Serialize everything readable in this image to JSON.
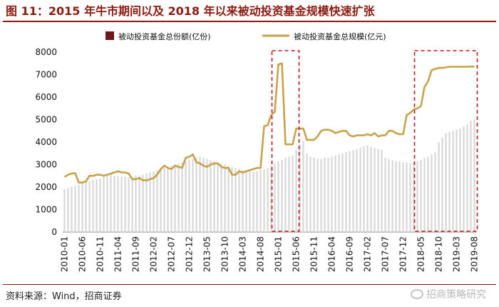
{
  "header": {
    "title": "图 11：2015 年牛市期间以及 2018 年以来被动投资基金规模快速扩张"
  },
  "footer": {
    "source": "资料来源：Wind，招商证券",
    "watermark": "招商策略研究"
  },
  "chart_data": {
    "type": "bar",
    "title": "",
    "ylim": [
      0,
      8000
    ],
    "yticks": [
      0,
      1000,
      2000,
      3000,
      4000,
      5000,
      6000,
      7000,
      8000
    ],
    "xtick_labels": [
      "2010-01",
      "2010-06",
      "2010-11",
      "2011-04",
      "2011-09",
      "2012-02",
      "2012-07",
      "2012-12",
      "2013-05",
      "2013-10",
      "2014-03",
      "2014-08",
      "2015-01",
      "2015-06",
      "2015-11",
      "2016-04",
      "2016-09",
      "2017-02",
      "2017-07",
      "2017-12",
      "2018-05",
      "2018-10",
      "2019-03",
      "2019-08"
    ],
    "legend": [
      "被动投资基金总份额(亿份)",
      "被动投资基金总规模(亿元)"
    ],
    "colors": {
      "bars": "#d8d8d8",
      "legend_bar": "#6b1a1a",
      "line": "#c8a24a",
      "highlight": "#c0141c"
    },
    "x_start": "2010-01",
    "highlight_ranges": [
      [
        "2014-12",
        "2015-06"
      ],
      [
        "2018-04",
        "2019-08"
      ]
    ],
    "series": [
      {
        "name": "被动投资基金总份额(亿份)",
        "kind": "bar",
        "values": [
          1900,
          1950,
          2000,
          2050,
          2100,
          2150,
          2200,
          2250,
          2300,
          2350,
          2400,
          2450,
          2500,
          2550,
          2500,
          2480,
          2450,
          2450,
          2420,
          2450,
          2500,
          2520,
          2550,
          2600,
          2650,
          2700,
          2750,
          2800,
          2850,
          2900,
          2950,
          3000,
          3050,
          3100,
          3150,
          3200,
          3250,
          3300,
          3350,
          3300,
          3250,
          3200,
          3150,
          3100,
          3050,
          3000,
          2950,
          2900,
          2850,
          2800,
          2750,
          2720,
          2700,
          2680,
          2700,
          2750,
          2800,
          2850,
          2950,
          3050,
          3150,
          3200,
          3300,
          3350,
          3400,
          3650,
          3900,
          4050,
          3500,
          3350,
          3300,
          3250,
          3250,
          3300,
          3300,
          3350,
          3400,
          3450,
          3500,
          3550,
          3600,
          3650,
          3700,
          3750,
          3800,
          3850,
          3800,
          3750,
          3700,
          3650,
          3300,
          3250,
          3200,
          3150,
          3150,
          3100,
          3100,
          3050,
          3100,
          3150,
          3200,
          3300,
          3350,
          3450,
          3550,
          4000,
          4200,
          4400,
          4450,
          4500,
          4550,
          4600,
          4700,
          4800,
          4950,
          5000
        ]
      },
      {
        "name": "被动投资基金总规模(亿元)",
        "kind": "line",
        "values": [
          2450,
          2550,
          2600,
          2620,
          2200,
          2200,
          2250,
          2500,
          2500,
          2550,
          2550,
          2500,
          2550,
          2600,
          2650,
          2700,
          2650,
          2650,
          2600,
          2350,
          2350,
          2400,
          2300,
          2300,
          2350,
          2400,
          2550,
          2800,
          2950,
          2850,
          2800,
          2950,
          2900,
          2850,
          3300,
          3350,
          3450,
          3100,
          3050,
          2950,
          2900,
          3000,
          3050,
          3050,
          2900,
          2850,
          2850,
          2550,
          2550,
          2700,
          2650,
          2700,
          2750,
          2800,
          2850,
          2850,
          4700,
          4750,
          5200,
          5350,
          7450,
          7500,
          3900,
          3900,
          3900,
          4600,
          4600,
          4600,
          4100,
          4100,
          4100,
          4250,
          4500,
          4550,
          4550,
          4500,
          4400,
          4450,
          4500,
          4500,
          4300,
          4250,
          4300,
          4300,
          4300,
          4350,
          4300,
          4400,
          4250,
          4300,
          4300,
          4500,
          4500,
          4400,
          4350,
          4350,
          5200,
          5300,
          5450,
          5500,
          5600,
          6450,
          6700,
          7200,
          7250,
          7300,
          7300,
          7320,
          7350,
          7350,
          7350,
          7350,
          7350,
          7350,
          7360,
          7360
        ]
      }
    ]
  }
}
